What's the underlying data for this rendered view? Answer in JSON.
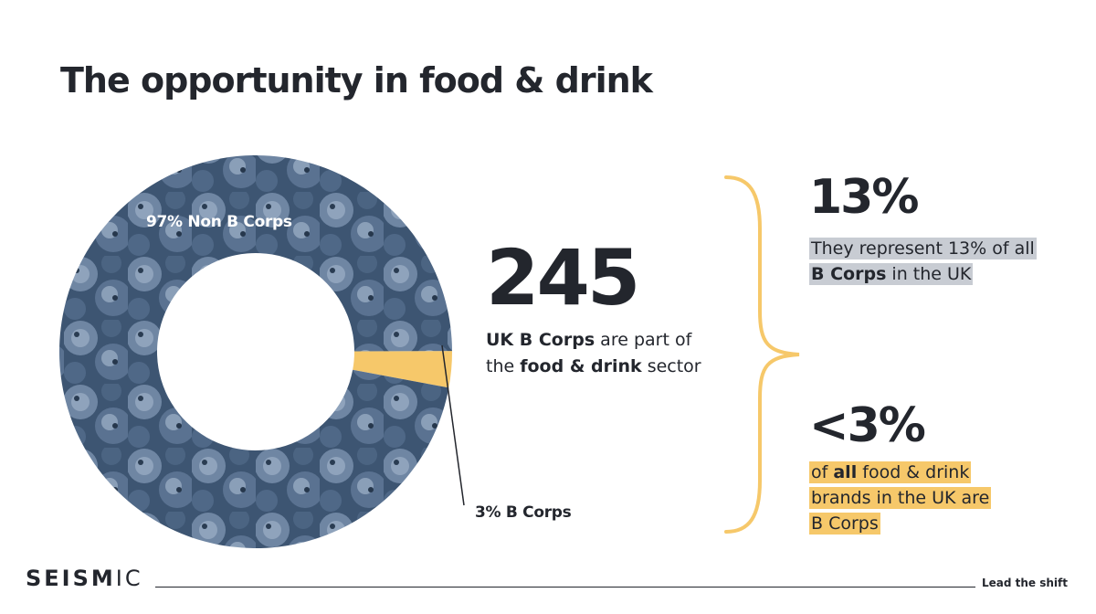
{
  "title": "The opportunity in food & drink",
  "chart_data": {
    "type": "pie",
    "variant": "donut",
    "slices": [
      {
        "label": "97% Non B Corps",
        "value": 97,
        "color": "#3c5570"
      },
      {
        "label": "3% B Corps",
        "value": 3,
        "color": "#f6c86a"
      }
    ]
  },
  "headline": {
    "number": "245",
    "line1_bold": "UK B Corps",
    "line1_rest": " are part of",
    "line2_pre": "the ",
    "line2_bold": "food & drink",
    "line2_post": " sector"
  },
  "stats": {
    "top": {
      "pct": "13%",
      "desc_line1": "They represent 13% of all",
      "desc_line2_bold": "B Corps",
      "desc_line2_rest": " in the UK"
    },
    "bottom": {
      "pct": "<3%",
      "desc_pre": "of ",
      "desc_bold": "all",
      "desc_line1_rest": " food & drink",
      "desc_line2": "brands in the UK are",
      "desc_line3": "B Corps"
    }
  },
  "footer": {
    "logo_bold": "SEISM",
    "logo_rest": "IC",
    "tagline": "Lead the shift"
  },
  "colors": {
    "accent": "#f6c86a",
    "dark": "#23262d",
    "highlight_grey": "#c8ccd3"
  }
}
